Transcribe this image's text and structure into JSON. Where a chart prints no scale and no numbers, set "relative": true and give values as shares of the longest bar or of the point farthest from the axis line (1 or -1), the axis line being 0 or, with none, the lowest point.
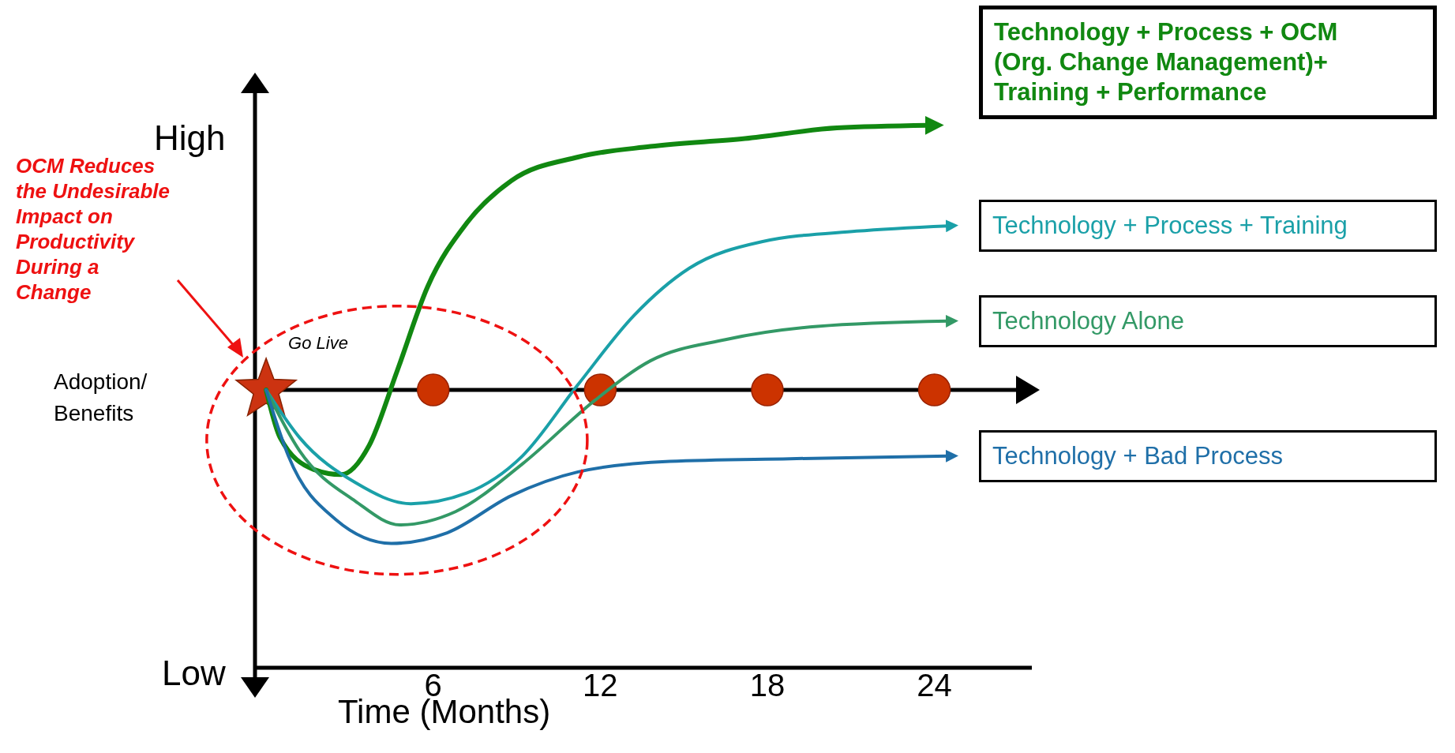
{
  "chart_data": {
    "type": "line",
    "relative": true,
    "xlabel": "Time (Months)",
    "ylabel": "Adoption/ Benefits",
    "xlim": [
      -0.4,
      27.5
    ],
    "xticks": [
      6,
      12,
      18,
      24
    ],
    "legend": "right",
    "grid": false,
    "marker": "none",
    "line_style": "solid",
    "series": [
      {
        "name": "Technology + Process + OCM (Org. Change Management)+ Training + Performance",
        "color": "#118811",
        "x": [
          0,
          0.5,
          1.7,
          2.7,
          3.7,
          4.7,
          5.8,
          7.2,
          8.8,
          11.2,
          13.8,
          17.2,
          20.5,
          23.8
        ],
        "values": [
          0,
          -0.18,
          -0.3,
          -0.32,
          -0.21,
          0.07,
          0.39,
          0.63,
          0.79,
          0.88,
          0.92,
          0.95,
          0.99,
          1
        ]
      },
      {
        "name": "Technology + Process + Training",
        "color": "#1aa0a8",
        "x": [
          0,
          1.2,
          3.2,
          5.2,
          7.2,
          9.2,
          11.2,
          13.2,
          15.2,
          17.8,
          21.2,
          24.5
        ],
        "values": [
          0,
          -0.18,
          -0.35,
          -0.43,
          -0.39,
          -0.25,
          0.02,
          0.28,
          0.46,
          0.56,
          0.6,
          0.62
        ]
      },
      {
        "name": "Technology Alone",
        "color": "#339966",
        "x": [
          0,
          1.2,
          3.2,
          4.8,
          6.8,
          9.2,
          11.8,
          13.8,
          16.5,
          19.8,
          24.5
        ],
        "values": [
          0,
          -0.23,
          -0.42,
          -0.51,
          -0.46,
          -0.28,
          -0.04,
          0.11,
          0.19,
          0.24,
          0.26
        ]
      },
      {
        "name": "Technology + Bad Process",
        "color": "#1f6fa8",
        "x": [
          0,
          0.8,
          2.5,
          4.5,
          6.5,
          8.8,
          11.2,
          14.5,
          18.8,
          24.5
        ],
        "values": [
          0,
          -0.25,
          -0.49,
          -0.58,
          -0.54,
          -0.4,
          -0.31,
          -0.27,
          -0.26,
          -0.25
        ]
      }
    ],
    "annotations": [
      "OCM Reduces the Undesirable Impact on Productivity During a Change",
      {
        "text": "Go Live",
        "x": 0,
        "y": 0
      },
      "High",
      "Low"
    ]
  }
}
